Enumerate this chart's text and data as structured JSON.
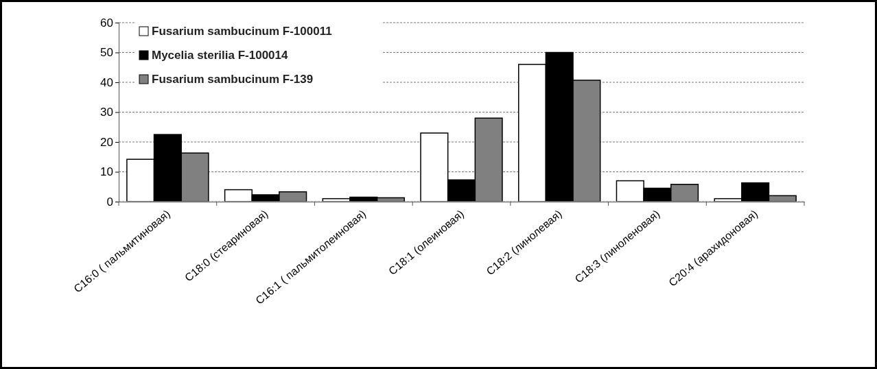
{
  "chart_data": {
    "type": "bar",
    "categories": [
      "C16:0 ( пальмитиновая)",
      "C18:0 (стеариновая)",
      "C16:1 ( пальмитолеиновая)",
      "C18:1 (олеиновая)",
      "C18:2 (линолевая)",
      "C18:3 (линоленовая)",
      "C20:4 (арахидоновая)"
    ],
    "series": [
      {
        "name": "Fusarium sambucinum F-100011",
        "color": "#ffffff",
        "values": [
          14.2,
          4,
          1,
          23,
          46,
          7,
          1
        ]
      },
      {
        "name": "Mycelia sterilia  F-100014",
        "color": "#000000",
        "values": [
          22.5,
          2.3,
          1.5,
          7.3,
          50,
          4.5,
          6.3
        ]
      },
      {
        "name": "Fusarium sambucinum F-139",
        "color": "#808080",
        "values": [
          16.3,
          3.3,
          1.3,
          28,
          40.7,
          5.8,
          2
        ]
      }
    ],
    "ylim": [
      0,
      60
    ],
    "yticks": [
      0,
      10,
      20,
      30,
      40,
      50,
      60
    ],
    "grid": "y",
    "legend": "top left"
  }
}
